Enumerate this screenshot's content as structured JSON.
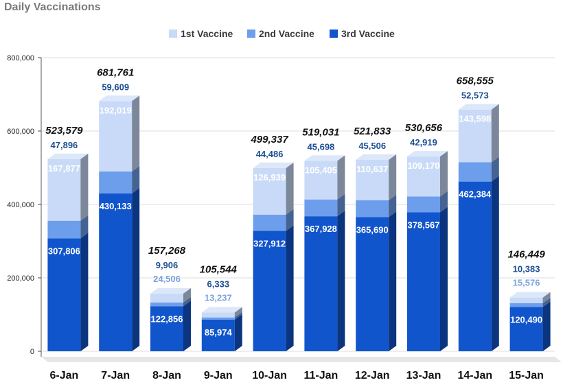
{
  "chart_data": {
    "type": "bar",
    "stacked": true,
    "title": "Daily Vaccinations",
    "categories": [
      "6-Jan",
      "7-Jan",
      "8-Jan",
      "9-Jan",
      "10-Jan",
      "11-Jan",
      "12-Jan",
      "13-Jan",
      "14-Jan",
      "15-Jan"
    ],
    "series": [
      {
        "name": "3rd Vaccine",
        "color": "#1155cc",
        "values": [
          307806,
          430133,
          122856,
          85974,
          327912,
          367928,
          365690,
          378567,
          462384,
          120490
        ]
      },
      {
        "name": "2nd Vaccine",
        "color": "#6d9eeb",
        "values": [
          47896,
          59609,
          9906,
          6333,
          44486,
          45698,
          45506,
          42919,
          52573,
          10383
        ]
      },
      {
        "name": "1st Vaccine",
        "color": "#c9daf8",
        "values": [
          167877,
          192019,
          24506,
          13237,
          126939,
          105405,
          110637,
          109170,
          143598,
          15576
        ]
      }
    ],
    "labels": {
      "3rd Vaccine": [
        "307,806",
        "430,133",
        "122,856",
        "85,974",
        "327,912",
        "367,928",
        "365,690",
        "378,567",
        "462,384",
        "120,490"
      ],
      "2nd Vaccine": [
        "47,896",
        "59,609",
        "9,906",
        "6,333",
        "44,486",
        "45,698",
        "45,506",
        "42,919",
        "52,573",
        "10,383"
      ],
      "1st Vaccine": [
        "167,877",
        "192,019",
        "24,506",
        "13,237",
        "126,939",
        "105,405",
        "110,637",
        "109,170",
        "143,598",
        "15,576"
      ]
    },
    "totals": [
      "523,579",
      "681,761",
      "157,268",
      "105,544",
      "499,337",
      "519,031",
      "521,833",
      "530,656",
      "658,555",
      "146,449"
    ],
    "legend": [
      "1st Vaccine",
      "2nd Vaccine",
      "3rd Vaccine"
    ],
    "legend_position": "top",
    "yticks": [
      "0",
      "200,000",
      "400,000",
      "600,000",
      "800,000"
    ],
    "ylim": [
      0,
      800000
    ],
    "grid": true,
    "xlabel": "",
    "ylabel": ""
  }
}
